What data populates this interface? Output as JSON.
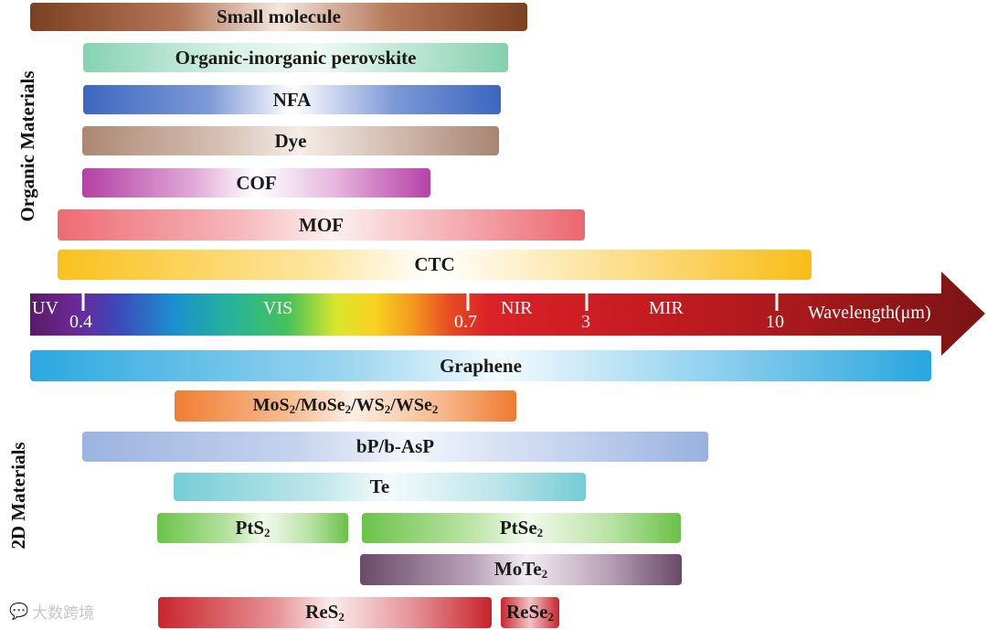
{
  "organic_label": "Organic Materials",
  "twod_label": "2D Materials",
  "organic_bars": [
    {
      "label": "Small molecule"
    },
    {
      "label": "Organic-inorganic perovskite"
    },
    {
      "label": "NFA"
    },
    {
      "label": "Dye"
    },
    {
      "label": "COF"
    },
    {
      "label": "MOF"
    },
    {
      "label": "CTC"
    }
  ],
  "spectrum": {
    "uv": "UV",
    "vis": "VIS",
    "nir": "NIR",
    "mir": "MIR",
    "ticks": [
      "0.4",
      "0.7",
      "3",
      "10"
    ],
    "axis_label": "Wavelength(μm)"
  },
  "twod_bars": {
    "graphene": "Graphene",
    "tmd": [
      "MoS",
      "2",
      "/MoSe",
      "2",
      "/WS",
      "2",
      "/WSe",
      "2"
    ],
    "bp": "bP/b-AsP",
    "te": "Te",
    "pts2": [
      "PtS",
      "2"
    ],
    "ptse2": [
      "PtSe",
      "2"
    ],
    "mote2": [
      "MoTe",
      "2"
    ],
    "res2": [
      "ReS",
      "2"
    ],
    "rese2": [
      "ReSe",
      "2"
    ]
  },
  "watermark": "大数跨境"
}
